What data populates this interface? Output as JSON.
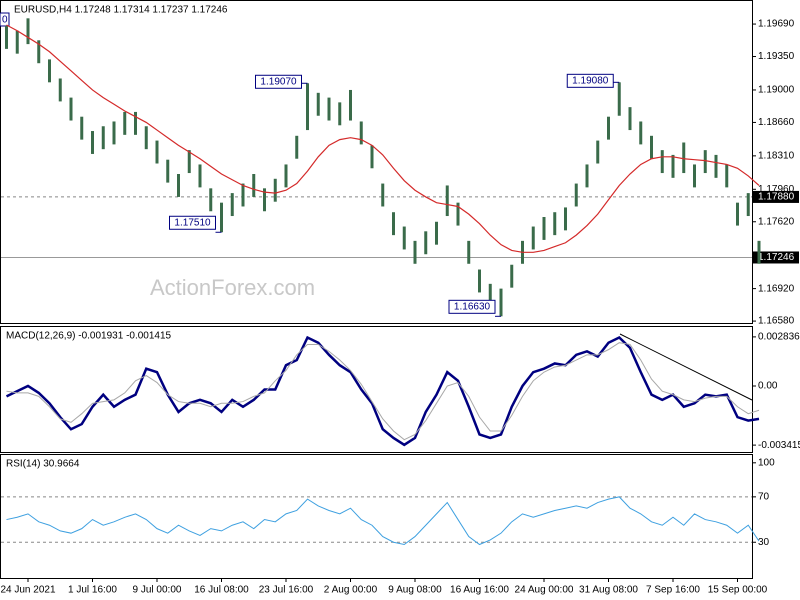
{
  "chart_data": [
    {
      "type": "ohlc",
      "title": "EURUSD,H4  1.17248 1.17314 1.17237 1.17246",
      "corner_label": "0",
      "watermark": "ActionForex.com",
      "color": "#3a6b4a",
      "ma_color": "#d42a2a",
      "categories": [
        null,
        null,
        "24 Jun 2021",
        null,
        null,
        null,
        null,
        null,
        "1 Jul 16:00",
        null,
        null,
        null,
        null,
        null,
        "9 Jul 00:00",
        null,
        null,
        null,
        null,
        null,
        "16 Jul 08:00",
        null,
        null,
        null,
        null,
        null,
        "23 Jul 16:00",
        null,
        null,
        null,
        null,
        null,
        "2 Aug 00:00",
        null,
        null,
        null,
        null,
        null,
        "9 Aug 08:00",
        null,
        null,
        null,
        null,
        null,
        "16 Aug 16:00",
        null,
        null,
        null,
        null,
        null,
        "24 Aug 00:00",
        null,
        null,
        null,
        null,
        null,
        "31 Aug 08:00",
        null,
        null,
        null,
        null,
        null,
        "7 Sep 16:00",
        null,
        null,
        null,
        null,
        null,
        "15 Sep 00:00",
        null,
        null
      ],
      "high": [
        1.1967,
        1.1962,
        1.1975,
        1.1952,
        1.1932,
        1.1912,
        1.1892,
        1.1872,
        1.1857,
        1.1862,
        1.1867,
        1.1877,
        1.1877,
        1.1862,
        1.1847,
        1.1827,
        1.1812,
        1.1837,
        1.1822,
        1.1797,
        1.1782,
        1.1792,
        1.1802,
        1.1812,
        1.1797,
        1.1807,
        1.1822,
        1.1852,
        1.1907,
        1.1897,
        1.1892,
        1.1887,
        1.19,
        1.1867,
        1.1842,
        1.1802,
        1.1772,
        1.1757,
        1.1742,
        1.1752,
        1.1762,
        1.18,
        1.1782,
        1.1742,
        1.1712,
        1.1697,
        1.1692,
        1.1717,
        1.1742,
        1.1757,
        1.1767,
        1.1772,
        1.1777,
        1.1802,
        1.1822,
        1.1847,
        1.1872,
        1.1908,
        1.1882,
        1.1867,
        1.1852,
        1.1837,
        1.1832,
        1.1845,
        1.1822,
        1.1837,
        1.1832,
        1.1822,
        1.1782,
        1.1792,
        1.1742
      ],
      "low": [
        1.1943,
        1.1938,
        1.1948,
        1.1928,
        1.1908,
        1.1888,
        1.1868,
        1.1848,
        1.1833,
        1.1838,
        1.1843,
        1.1853,
        1.1853,
        1.1838,
        1.1823,
        1.1803,
        1.1788,
        1.1813,
        1.1798,
        1.1773,
        1.1751,
        1.1768,
        1.1778,
        1.1788,
        1.1773,
        1.1783,
        1.1798,
        1.1828,
        1.1858,
        1.1873,
        1.1868,
        1.1863,
        1.1868,
        1.1843,
        1.1818,
        1.1778,
        1.1748,
        1.1733,
        1.1718,
        1.1728,
        1.1738,
        1.1768,
        1.1758,
        1.1718,
        1.1688,
        1.1673,
        1.1663,
        1.1693,
        1.1718,
        1.1733,
        1.1743,
        1.1748,
        1.1753,
        1.1778,
        1.1798,
        1.1823,
        1.1848,
        1.1873,
        1.1858,
        1.1843,
        1.1828,
        1.1813,
        1.1808,
        1.1813,
        1.1798,
        1.1813,
        1.1808,
        1.1798,
        1.1758,
        1.1768,
        1.1718
      ],
      "ma": [
        1.1968,
        1.1962,
        1.1955,
        1.1948,
        1.194,
        1.193,
        1.192,
        1.191,
        1.19,
        1.1892,
        1.1885,
        1.1878,
        1.1872,
        1.1866,
        1.1858,
        1.185,
        1.1842,
        1.1835,
        1.1828,
        1.182,
        1.1812,
        1.1806,
        1.18,
        1.1796,
        1.1793,
        1.1792,
        1.1795,
        1.1802,
        1.1815,
        1.183,
        1.1842,
        1.1848,
        1.185,
        1.1848,
        1.1842,
        1.1832,
        1.1818,
        1.1805,
        1.1795,
        1.1788,
        1.1782,
        1.178,
        1.1778,
        1.177,
        1.176,
        1.1748,
        1.1738,
        1.1732,
        1.173,
        1.173,
        1.1732,
        1.1736,
        1.174,
        1.1748,
        1.1758,
        1.177,
        1.1785,
        1.18,
        1.1812,
        1.1822,
        1.1828,
        1.183,
        1.183,
        1.1828,
        1.1827,
        1.1826,
        1.1824,
        1.1822,
        1.1818,
        1.181,
        1.18
      ],
      "annotations": [
        {
          "value": 1.1907,
          "label": "1.19070",
          "index": 28
        },
        {
          "value": 1.1751,
          "label": "1.17510",
          "index": 20
        },
        {
          "value": 1.1663,
          "label": "1.16630",
          "index": 46
        },
        {
          "value": 1.1908,
          "label": "1.19080",
          "index": 57
        }
      ],
      "levels": [
        {
          "value": 1.1788,
          "label": "1.17880",
          "style": "dashed"
        },
        {
          "value": 1.17246,
          "label": "1.17246",
          "style": "solid"
        }
      ],
      "ylim": [
        1.1656,
        1.199
      ],
      "yticks": [
        {
          "value": 1.1969,
          "label": "1.19690"
        },
        {
          "value": 1.1935,
          "label": "1.19350"
        },
        {
          "value": 1.19,
          "label": "1.19000"
        },
        {
          "value": 1.1866,
          "label": "1.18660"
        },
        {
          "value": 1.1831,
          "label": "1.18310"
        },
        {
          "value": 1.1796,
          "label": "1.17960"
        },
        {
          "value": 1.1762,
          "label": "1.17620"
        },
        {
          "value": 1.1692,
          "label": "1.16920"
        },
        {
          "value": 1.1658,
          "label": "1.16580"
        }
      ]
    },
    {
      "type": "line",
      "title": "MACD(12,26,9) -0.001931 -0.001415",
      "series": [
        {
          "color": "#000080",
          "width": 2.5,
          "values": [
            -0.0006,
            -0.0003,
            0.0,
            -0.0004,
            -0.001,
            -0.0018,
            -0.0025,
            -0.0022,
            -0.0012,
            -0.0005,
            -0.0012,
            -0.0008,
            -0.0005,
            0.001,
            0.0008,
            -0.0005,
            -0.0015,
            -0.001,
            -0.0008,
            -0.001,
            -0.0015,
            -0.0008,
            -0.0012,
            -0.0008,
            -0.0002,
            -0.0002,
            0.0012,
            0.0015,
            0.0028,
            0.0025,
            0.0018,
            0.0012,
            0.0008,
            -0.0002,
            -0.001,
            -0.0025,
            -0.003,
            -0.0034,
            -0.003,
            -0.0015,
            -0.0005,
            0.0008,
            0.0003,
            -0.0012,
            -0.0028,
            -0.003,
            -0.0028,
            -0.0012,
            0.0,
            0.0008,
            0.001,
            0.0013,
            0.0012,
            0.0018,
            0.002,
            0.0017,
            0.0025,
            0.0028,
            0.0022,
            0.0008,
            -0.0005,
            -0.0008,
            -0.0005,
            -0.0012,
            -0.001,
            -0.0005,
            -0.0006,
            -0.0005,
            -0.0018,
            -0.002,
            -0.0019
          ]
        },
        {
          "color": "#a8a8a8",
          "width": 1,
          "values": [
            -0.0003,
            -0.0004,
            -0.0004,
            -0.0006,
            -0.0012,
            -0.0019,
            -0.0021,
            -0.0016,
            -0.001,
            -0.0009,
            -0.0008,
            -0.0004,
            0.0003,
            0.0006,
            0.0002,
            -0.0005,
            -0.0009,
            -0.001,
            -0.001,
            -0.0012,
            -0.001,
            -0.001,
            -0.0009,
            -0.0006,
            -0.0004,
            0.0003,
            0.0009,
            0.0018,
            0.0024,
            0.0024,
            0.002,
            0.0015,
            0.0009,
            0.0001,
            -0.0009,
            -0.0019,
            -0.0026,
            -0.0031,
            -0.0028,
            -0.002,
            -0.001,
            0.0,
            0.0002,
            -0.0006,
            -0.0018,
            -0.0026,
            -0.0026,
            -0.0017,
            -0.0006,
            0.0003,
            0.0008,
            0.0011,
            0.0012,
            0.0015,
            0.0018,
            0.0018,
            0.0021,
            0.0025,
            0.0024,
            0.0015,
            0.0004,
            -0.0003,
            -0.0005,
            -0.0008,
            -0.0009,
            -0.0007,
            -0.0006,
            -0.0006,
            -0.0012,
            -0.0016,
            -0.0014
          ]
        }
      ],
      "ylim": [
        -0.003813,
        0.003234
      ],
      "yticks": [
        0.002836,
        {
          "value": 0,
          "label": "0.00"
        },
        -0.003415
      ]
    },
    {
      "type": "line",
      "title": "RSI(14) 30.9664",
      "series": [
        {
          "color": "#3ea0e0",
          "width": 1,
          "values": [
            50,
            52,
            55,
            48,
            45,
            40,
            38,
            42,
            50,
            45,
            48,
            52,
            55,
            50,
            42,
            38,
            45,
            40,
            36,
            42,
            40,
            45,
            48,
            42,
            50,
            48,
            55,
            58,
            68,
            62,
            58,
            55,
            60,
            50,
            45,
            35,
            30,
            28,
            35,
            45,
            55,
            65,
            50,
            35,
            28,
            32,
            38,
            48,
            55,
            52,
            55,
            58,
            60,
            62,
            60,
            65,
            68,
            70,
            60,
            55,
            48,
            45,
            52,
            45,
            55,
            50,
            48,
            45,
            38,
            45,
            31
          ]
        }
      ],
      "levels": [
        {
          "value": 70,
          "style": "dashed"
        },
        {
          "value": 30,
          "style": "dashed"
        }
      ],
      "ylim": [
        -1.5,
        106
      ],
      "yticks": [
        100,
        70,
        30
      ]
    }
  ]
}
